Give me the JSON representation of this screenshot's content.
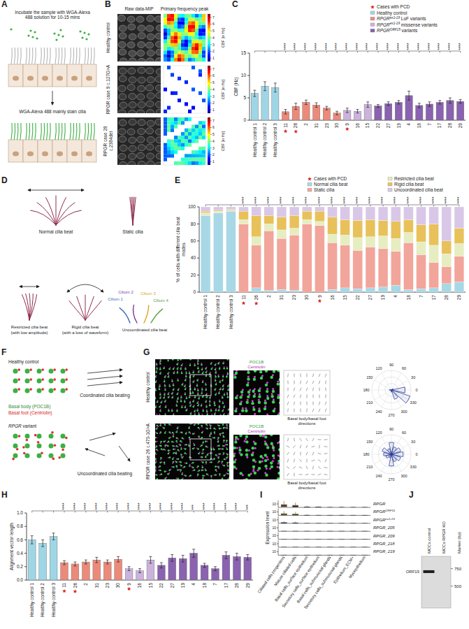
{
  "chart_data": [
    {
      "panel": "C",
      "type": "bar",
      "y_label": "CBF (Hz)",
      "categories": [
        "Healthy control 1",
        "Healthy control 2",
        "Healthy control 3",
        "11",
        "26",
        "2",
        "31",
        "23",
        "30",
        "9",
        "16",
        "15",
        "22",
        "27",
        "19",
        "4",
        "18",
        "7",
        "17",
        "28",
        "29"
      ],
      "values": [
        6.0,
        7.6,
        7.3,
        1.9,
        3.1,
        4.0,
        3.4,
        2.7,
        1.6,
        2.2,
        2.0,
        3.5,
        3.2,
        3.7,
        4.0,
        5.5,
        3.3,
        3.6,
        4.0,
        4.4,
        4.2
      ],
      "errors": [
        0.7,
        1.0,
        1.0,
        0.5,
        0.7,
        0.5,
        0.5,
        0.4,
        0.4,
        0.5,
        0.4,
        0.6,
        0.3,
        0.4,
        0.4,
        1.0,
        0.5,
        0.5,
        0.4,
        0.6,
        0.4
      ],
      "colors": [
        "#9fd6e6",
        "#9fd6e6",
        "#9fd6e6",
        "#ec8a7a",
        "#ec8a7a",
        "#ec8a7a",
        "#ec8a7a",
        "#ec8a7a",
        "#ec8a7a",
        "#cbb3dc",
        "#cbb3dc",
        "#cbb3dc",
        "#8a62b0",
        "#8a62b0",
        "#8a62b0",
        "#8a62b0",
        "#8a62b0",
        "#8a62b0",
        "#8a62b0",
        "#8a62b0",
        "#8a62b0"
      ],
      "ylim": [
        0,
        15
      ],
      "yticks": [
        0,
        5,
        10,
        15
      ],
      "significance": [
        null,
        null,
        null,
        "****",
        "****",
        "****",
        "****",
        "****",
        "****",
        "****",
        "****",
        "****",
        "****",
        "****",
        "****",
        "****",
        "****",
        "****",
        "****",
        "****",
        "****"
      ],
      "pcd_cases": [
        "11",
        "26",
        "9"
      ],
      "pcd_label": "Cases with PCD",
      "pcd_color": "#d7261e",
      "groups": [
        {
          "text": "Healthy control",
          "color": "#9fd6e6"
        },
        {
          "text": "RPGR",
          "sup": "ex1-19",
          "suffix": " LoF variants",
          "color": "#ec8a7a"
        },
        {
          "text": "RPGR",
          "sup": "ex1-19",
          "suffix": " missense variants",
          "color": "#cbb3dc"
        },
        {
          "text": "RPGR",
          "sup": "ORF15",
          "suffix": " variants",
          "color": "#8a62b0"
        }
      ],
      "legend": "top-right"
    },
    {
      "panel": "E",
      "type": "bar",
      "stacked": true,
      "y_label": "% of cells with different cilia beat modes",
      "categories": [
        "Healthy control 1",
        "Healthy control 2",
        "Healthy control 3",
        "11",
        "26",
        "2",
        "31",
        "23",
        "30",
        "9",
        "16",
        "15",
        "22",
        "27",
        "19",
        "4",
        "18",
        "7",
        "17",
        "28",
        "29"
      ],
      "series": [
        {
          "name": "Normal cilia beat",
          "color": "#a8d8e6",
          "values": [
            90,
            93,
            95,
            0,
            5,
            2,
            3,
            2,
            0,
            0,
            3,
            5,
            4,
            5,
            6,
            8,
            3,
            4,
            5,
            10,
            12
          ]
        },
        {
          "name": "Static cilia",
          "color": "#f2a59a",
          "values": [
            0,
            0,
            0,
            80,
            50,
            70,
            60,
            65,
            80,
            78,
            55,
            50,
            45,
            48,
            45,
            40,
            55,
            40,
            30,
            20,
            30
          ]
        },
        {
          "name": "Restricted cilia beat",
          "color": "#e6edc0",
          "values": [
            3,
            2,
            1,
            5,
            10,
            8,
            10,
            8,
            5,
            5,
            10,
            12,
            15,
            12,
            15,
            15,
            12,
            15,
            20,
            15,
            15
          ]
        },
        {
          "name": "Rigid cilia beat",
          "color": "#e8c15a",
          "values": [
            2,
            1,
            1,
            10,
            25,
            10,
            15,
            15,
            10,
            12,
            20,
            18,
            20,
            20,
            18,
            20,
            15,
            20,
            25,
            15,
            18
          ]
        },
        {
          "name": "Uncoordinated cilia beat",
          "color": "#d9c7e8",
          "values": [
            5,
            4,
            3,
            5,
            10,
            10,
            12,
            10,
            5,
            5,
            12,
            15,
            16,
            15,
            16,
            17,
            15,
            21,
            20,
            40,
            25
          ]
        }
      ],
      "ylim": [
        0,
        100
      ],
      "yticks": [
        0,
        20,
        40,
        60,
        80,
        100
      ],
      "significance": [
        null,
        null,
        null,
        "****",
        "****",
        "****",
        "****",
        "****",
        "****",
        "****",
        "****",
        "****",
        "****",
        "****",
        "****",
        "****",
        "****",
        "****",
        "****",
        "****",
        "****"
      ],
      "pcd_cases": [
        "11",
        "26",
        "9"
      ],
      "pcd_label": "Cases with PCD",
      "pcd_color": "#d7261e",
      "legend": "top-right"
    },
    {
      "panel": "H",
      "type": "bar",
      "y_label": "Alignment vector length",
      "categories": [
        "Healthy control 1",
        "Healthy control 2",
        "Healthy control 3",
        "11",
        "26",
        "2",
        "31",
        "23",
        "30",
        "9",
        "16",
        "15",
        "22",
        "27",
        "19",
        "4",
        "18",
        "7",
        "17",
        "28",
        "29"
      ],
      "values": [
        0.6,
        0.55,
        0.65,
        0.26,
        0.24,
        0.27,
        0.3,
        0.27,
        0.31,
        0.17,
        0.14,
        0.3,
        0.22,
        0.33,
        0.32,
        0.4,
        0.22,
        0.17,
        0.37,
        0.35,
        0.34
      ],
      "errors": [
        0.06,
        0.05,
        0.05,
        0.03,
        0.03,
        0.03,
        0.04,
        0.03,
        0.04,
        0.03,
        0.03,
        0.05,
        0.04,
        0.05,
        0.05,
        0.06,
        0.03,
        0.03,
        0.05,
        0.05,
        0.04
      ],
      "colors": [
        "#9fd6e6",
        "#9fd6e6",
        "#9fd6e6",
        "#ec8a7a",
        "#ec8a7a",
        "#ec8a7a",
        "#ec8a7a",
        "#ec8a7a",
        "#ec8a7a",
        "#cbb3dc",
        "#cbb3dc",
        "#cbb3dc",
        "#8a62b0",
        "#8a62b0",
        "#8a62b0",
        "#8a62b0",
        "#8a62b0",
        "#8a62b0",
        "#8a62b0",
        "#8a62b0",
        "#8a62b0"
      ],
      "ylim": [
        0,
        1.0
      ],
      "yticks": [
        {
          "value": 0,
          "label": "0.0"
        },
        0.2,
        0.4,
        0.6,
        0.8,
        {
          "value": 1.0,
          "label": "1.0"
        }
      ],
      "significance": [
        null,
        null,
        null,
        "****",
        "****",
        "****",
        "****",
        "****",
        "****",
        "****",
        "****",
        "****",
        "****",
        "****",
        "****",
        "***",
        "****",
        "****",
        "****",
        "****",
        "***"
      ],
      "pcd_cases": [
        "11",
        "26",
        "9"
      ],
      "pcd_color": "#d7261e"
    },
    {
      "panel": "I",
      "type": "box",
      "y_label": "Expression level",
      "categories": [
        "Ciliated cells progenitors",
        "Mature ciliated cells",
        "Basal cells_surface epithelium",
        "Secretory cells_surface epithelium",
        "Basal cells_submucosal glands",
        "Secretory cells_submucosal glands",
        "Epithelium_ECM+",
        "Myoepithelium"
      ],
      "ylim": [
        0,
        20
      ],
      "yticks": [
        10
      ],
      "rows": [
        {
          "name": {
            "text": "RPGR"
          },
          "color": "#8b5a2b",
          "q1": [
            2,
            1,
            0,
            0,
            0,
            0,
            0,
            0
          ],
          "median": [
            4,
            3,
            0,
            0,
            0,
            0,
            0,
            0
          ],
          "q3": [
            8,
            6,
            1,
            0.5,
            0,
            0,
            0,
            0
          ],
          "whisker_high": [
            18,
            14,
            5,
            3,
            2,
            3,
            2,
            2
          ]
        },
        {
          "name": {
            "text": "RPGR",
            "sup": "ORF15"
          },
          "color": "#b59a2e",
          "q1": [
            1,
            0.5,
            0,
            0,
            0,
            0,
            0,
            0
          ],
          "median": [
            2,
            1.5,
            0,
            0,
            0,
            0,
            0,
            0
          ],
          "q3": [
            5,
            4,
            0.5,
            0,
            0,
            0,
            0,
            0
          ],
          "whisker_high": [
            12,
            10,
            3,
            2,
            1,
            2,
            1,
            1
          ]
        },
        {
          "name": {
            "text": "RPGR",
            "sup": "ex1-19"
          },
          "color": "#2b3f73",
          "q1": [
            0,
            0,
            0,
            0,
            0,
            0,
            0,
            0
          ],
          "median": [
            0.5,
            0.5,
            0,
            0,
            0,
            0,
            0,
            0
          ],
          "q3": [
            2,
            1.5,
            0,
            0,
            0,
            0,
            0,
            0
          ],
          "whisker_high": [
            6,
            5,
            1,
            1,
            0.5,
            1,
            0.5,
            0.5
          ]
        },
        {
          "name": {
            "text": "RPGR_205"
          },
          "color": "#555555",
          "q1": [
            0,
            0,
            0,
            0,
            0,
            0,
            0,
            0
          ],
          "median": [
            0,
            0,
            0,
            0,
            0,
            0,
            0,
            0
          ],
          "q3": [
            0,
            0,
            0,
            0,
            0,
            0,
            0,
            0
          ],
          "whisker_high": [
            1,
            0.5,
            0,
            0,
            0,
            0,
            0,
            0
          ]
        },
        {
          "name": {
            "text": "RPGR_209"
          },
          "color": "#555555",
          "q1": [
            0,
            0,
            0,
            0,
            0,
            0,
            0,
            0
          ],
          "median": [
            0,
            0,
            0,
            0,
            0,
            0,
            0,
            0
          ],
          "q3": [
            0,
            0,
            0,
            0,
            0,
            0,
            0,
            0
          ],
          "whisker_high": [
            0.5,
            0.5,
            0,
            0,
            0,
            0,
            0,
            0
          ]
        },
        {
          "name": {
            "text": "RPGR_218"
          },
          "color": "#555555",
          "q1": [
            0,
            0,
            0,
            0,
            0,
            0,
            0,
            0
          ],
          "median": [
            0,
            0,
            0,
            0,
            0,
            0,
            0,
            0
          ],
          "q3": [
            0,
            0,
            0,
            0,
            0,
            0,
            0,
            0
          ],
          "whisker_high": [
            0.5,
            0,
            0,
            0,
            0,
            0,
            0,
            0
          ]
        },
        {
          "name": {
            "text": "RPGR_219"
          },
          "color": "#555555",
          "q1": [
            0,
            0,
            0,
            0,
            0,
            0,
            0,
            0
          ],
          "median": [
            0,
            0,
            0,
            0,
            0,
            0,
            0,
            0
          ],
          "q3": [
            0,
            0,
            0,
            0,
            0,
            0,
            0,
            0
          ],
          "whisker_high": [
            0.5,
            0.5,
            0,
            0,
            0,
            0,
            0,
            0
          ]
        }
      ]
    }
  ],
  "panels": {
    "A": {
      "letter": "A",
      "step1": "Incubate the sample with WGA-Alexa 488 solution for 10-15 mins",
      "step2": "WGA-Alexa 488 mainly stain cilia"
    },
    "B": {
      "letter": "B",
      "columns": [
        "Raw data-MIP",
        "Primary frequency peak"
      ],
      "rows": [
        "Healthy control",
        "RPGR case 9 c.127G>A",
        "RPGR case 28 c.2384del"
      ],
      "colorbar": {
        "label": "CBF [in Hz]",
        "range": [
          0.5,
          7.5
        ],
        "ticks": [
          1,
          2,
          3,
          4,
          5,
          6,
          7
        ]
      }
    },
    "D": {
      "letter": "D",
      "normal": "Normal cilia beat",
      "static": "Static cilia",
      "restricted": [
        "Restricted cilia beat",
        "(with low amplitude)"
      ],
      "rigid": [
        "Rigid cilia beat",
        "(with a loss of waveform)"
      ],
      "uncoordinated": "Uncoordinated cilia beat",
      "cilia": [
        "Cilium 1",
        "Cilium 2",
        "Cilium 3",
        "Cilium 4"
      ]
    },
    "F": {
      "letter": "F",
      "healthy": "Healthy control",
      "basal_body": "Basal body (POC1B)",
      "basal_foot": "Basal foot (Centriolin)",
      "coordinated": "Coordinated cilia beating",
      "variant": {
        "text": "RPGR",
        "suffix": " variant"
      },
      "uncoordinated": "Uncoordinated cilia beating"
    },
    "G": {
      "letter": "G",
      "stain1": "POC1B",
      "stain2": "Centriolin",
      "directions_label": "Basal body/basal foot directions",
      "angle_ticks": [
        0,
        30,
        60,
        90,
        120,
        150,
        180,
        210,
        240,
        270,
        300,
        330
      ],
      "rose_range": [
        0,
        1
      ],
      "rows": [
        {
          "label": "Healthy control",
          "rose": [
            0.7,
            0.1,
            0,
            0,
            0,
            0.05,
            0.1,
            0,
            0,
            0.1,
            0.5,
            1.0
          ]
        },
        {
          "label": "RPGR case 26 c.470-1G>A",
          "rose": [
            0.6,
            0.5,
            0.4,
            0.6,
            0.3,
            0.5,
            0.4,
            0.3,
            0.2,
            0.6,
            0.4,
            0.5
          ]
        }
      ]
    },
    "J": {
      "letter": "J",
      "lanes": [
        "MCCs control",
        "MCCs RPGR KO"
      ],
      "marker_label": "Marker (bp)",
      "log": "y",
      "ylim": [
        1000,
        300
      ],
      "yticks": [
        750,
        500
      ],
      "band": {
        "label": "ORF15",
        "lane": 0,
        "bp": 700
      }
    }
  }
}
